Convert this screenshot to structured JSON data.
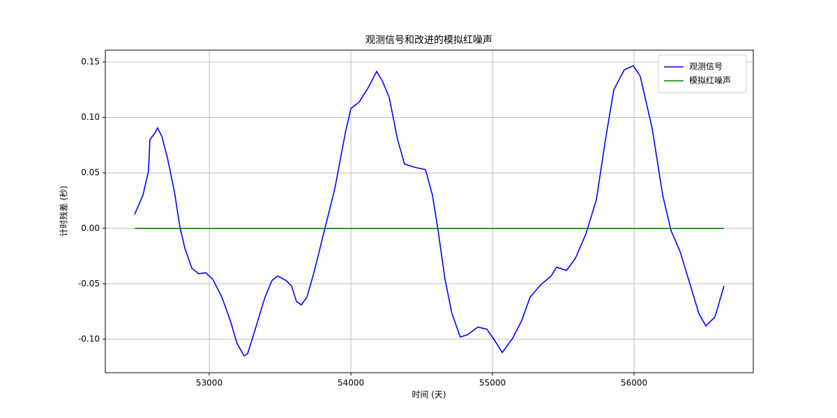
{
  "chart_data": {
    "type": "line",
    "title": "观测信号和改进的模拟红噪声",
    "xlabel": "时间 (天)",
    "ylabel": "计时残差 (秒)",
    "x": [
      52473,
      52532,
      52571,
      52581,
      52616,
      52635,
      52665,
      52704,
      52754,
      52793,
      52828,
      52877,
      52926,
      52975,
      53025,
      53089,
      53148,
      53197,
      53246,
      53271,
      53320,
      53394,
      53443,
      53483,
      53542,
      53581,
      53616,
      53650,
      53690,
      53739,
      53813,
      53887,
      53961,
      54000,
      54059,
      54123,
      54182,
      54222,
      54271,
      54330,
      54379,
      54453,
      54527,
      54576,
      54616,
      54665,
      54714,
      54773,
      54823,
      54897,
      54961,
      55020,
      55069,
      55143,
      55207,
      55266,
      55340,
      55414,
      55453,
      55522,
      55586,
      55660,
      55734,
      55798,
      55857,
      55931,
      55995,
      56044,
      56128,
      56202,
      56261,
      56325,
      56399,
      56458,
      56507,
      56571,
      56635
    ],
    "series": [
      {
        "name": "观测信号",
        "color": "#0000ff",
        "values": [
          0.0126,
          0.03,
          0.052,
          0.08,
          0.086,
          0.0906,
          0.083,
          0.064,
          0.033,
          0.001,
          -0.018,
          -0.036,
          -0.041,
          -0.04,
          -0.046,
          -0.062,
          -0.083,
          -0.104,
          -0.115,
          -0.113,
          -0.093,
          -0.062,
          -0.047,
          -0.043,
          -0.047,
          -0.052,
          -0.066,
          -0.069,
          -0.062,
          -0.04,
          -0.002,
          0.036,
          0.086,
          0.108,
          0.114,
          0.127,
          0.1415,
          0.133,
          0.118,
          0.08,
          0.058,
          0.055,
          0.053,
          0.03,
          -0.002,
          -0.046,
          -0.077,
          -0.098,
          -0.096,
          -0.089,
          -0.091,
          -0.102,
          -0.112,
          -0.099,
          -0.083,
          -0.062,
          -0.051,
          -0.043,
          -0.035,
          -0.038,
          -0.027,
          -0.005,
          0.026,
          0.08,
          0.125,
          0.143,
          0.1466,
          0.137,
          0.09,
          0.03,
          -0.002,
          -0.021,
          -0.052,
          -0.077,
          -0.088,
          -0.08,
          -0.052
        ]
      },
      {
        "name": "模拟红噪声",
        "color": "#008000",
        "values": [
          0,
          0,
          0,
          0,
          0,
          0,
          0,
          0,
          0,
          0,
          0,
          0,
          0,
          0,
          0,
          0,
          0,
          0,
          0,
          0,
          0,
          0,
          0,
          0,
          0,
          0,
          0,
          0,
          0,
          0,
          0,
          0,
          0,
          0,
          0,
          0,
          0,
          0,
          0,
          0,
          0,
          0,
          0,
          0,
          0,
          0,
          0,
          0,
          0,
          0,
          0,
          0,
          0,
          0,
          0,
          0,
          0,
          0,
          0,
          0,
          0,
          0,
          0,
          0,
          0,
          0,
          0,
          0,
          0,
          0,
          0,
          0,
          0,
          0,
          0,
          0,
          0
        ]
      }
    ],
    "xlim": [
      52266,
      56842
    ],
    "xticks": [
      53000,
      54000,
      55000,
      56000
    ],
    "ylim": [
      -0.1302,
      0.1607
    ],
    "yticks": [
      0.15,
      {
        "value": 0.1,
        "label": "0.10"
      },
      0.05,
      {
        "value": 0,
        "label": "0.00"
      },
      -0.05,
      {
        "value": -0.1,
        "label": "-0.10"
      }
    ],
    "grid": true,
    "legend": "upper right"
  }
}
